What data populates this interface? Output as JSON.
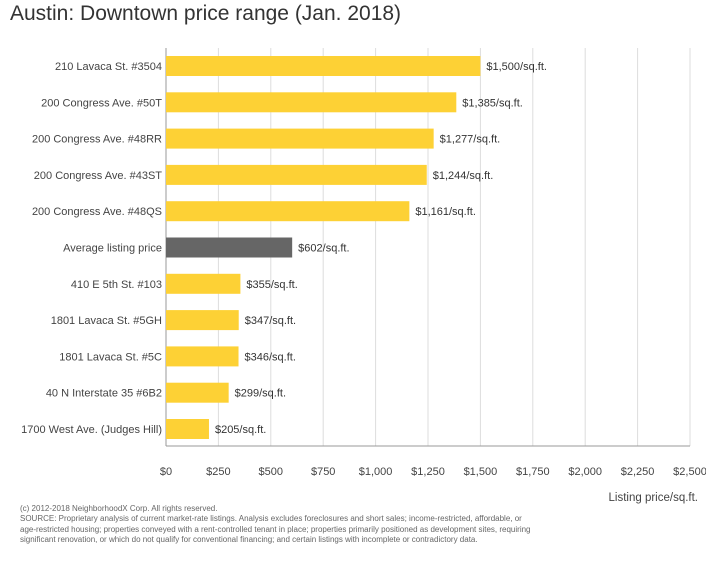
{
  "chart_data": {
    "type": "bar",
    "orientation": "horizontal",
    "title": "Austin: Downtown price range (Jan. 2018)",
    "xlabel": "Listing price/sq.ft.",
    "ylabel": "",
    "xlim": [
      0,
      2500
    ],
    "x_ticks": [
      0,
      250,
      500,
      750,
      1000,
      1250,
      1500,
      1750,
      2000,
      2250,
      2500
    ],
    "x_tick_labels": [
      "$0",
      "$250",
      "$500",
      "$750",
      "$1,000",
      "$1,250",
      "$1,500",
      "$1,750",
      "$2,000",
      "$2,250",
      "$2,500"
    ],
    "grid": true,
    "categories": [
      "210 Lavaca St. #3504",
      "200 Congress Ave. #50T",
      "200 Congress Ave. #48RR",
      "200 Congress Ave. #43ST",
      "200 Congress Ave. #48QS",
      "Average listing price",
      "410 E 5th St. #103",
      "1801 Lavaca St. #5GH",
      "1801 Lavaca St. #5C",
      "40 N Interstate 35 #6B2",
      "1700 West Ave. (Judges Hill)"
    ],
    "values": [
      1500,
      1385,
      1277,
      1244,
      1161,
      602,
      355,
      347,
      346,
      299,
      205
    ],
    "data_labels": [
      "$1,500/sq.ft.",
      "$1,385/sq.ft.",
      "$1,277/sq.ft.",
      "$1,244/sq.ft.",
      "$1,161/sq.ft.",
      "$602/sq.ft.",
      "$355/sq.ft.",
      "$347/sq.ft.",
      "$346/sq.ft.",
      "$299/sq.ft.",
      "$205/sq.ft."
    ],
    "highlight_index": 5,
    "colors": {
      "bar": "#fdd135",
      "highlight": "#666666",
      "grid": "#dddddd",
      "axis": "#999999"
    }
  },
  "footer": {
    "copyright": "(c) 2012-2018 NeighborhoodX Corp. All rights reserved.",
    "source": "SOURCE: Proprietary analysis of current market-rate listings. Analysis excludes foreclosures and short sales; income-restricted, affordable, or age-restricted housing; properties conveyed with a rent-controlled tenant in place; properties primarily positioned as development sites, requiring significant renovation, or which do not qualify for conventional financing; and certain listings with incomplete or contradictory data."
  }
}
